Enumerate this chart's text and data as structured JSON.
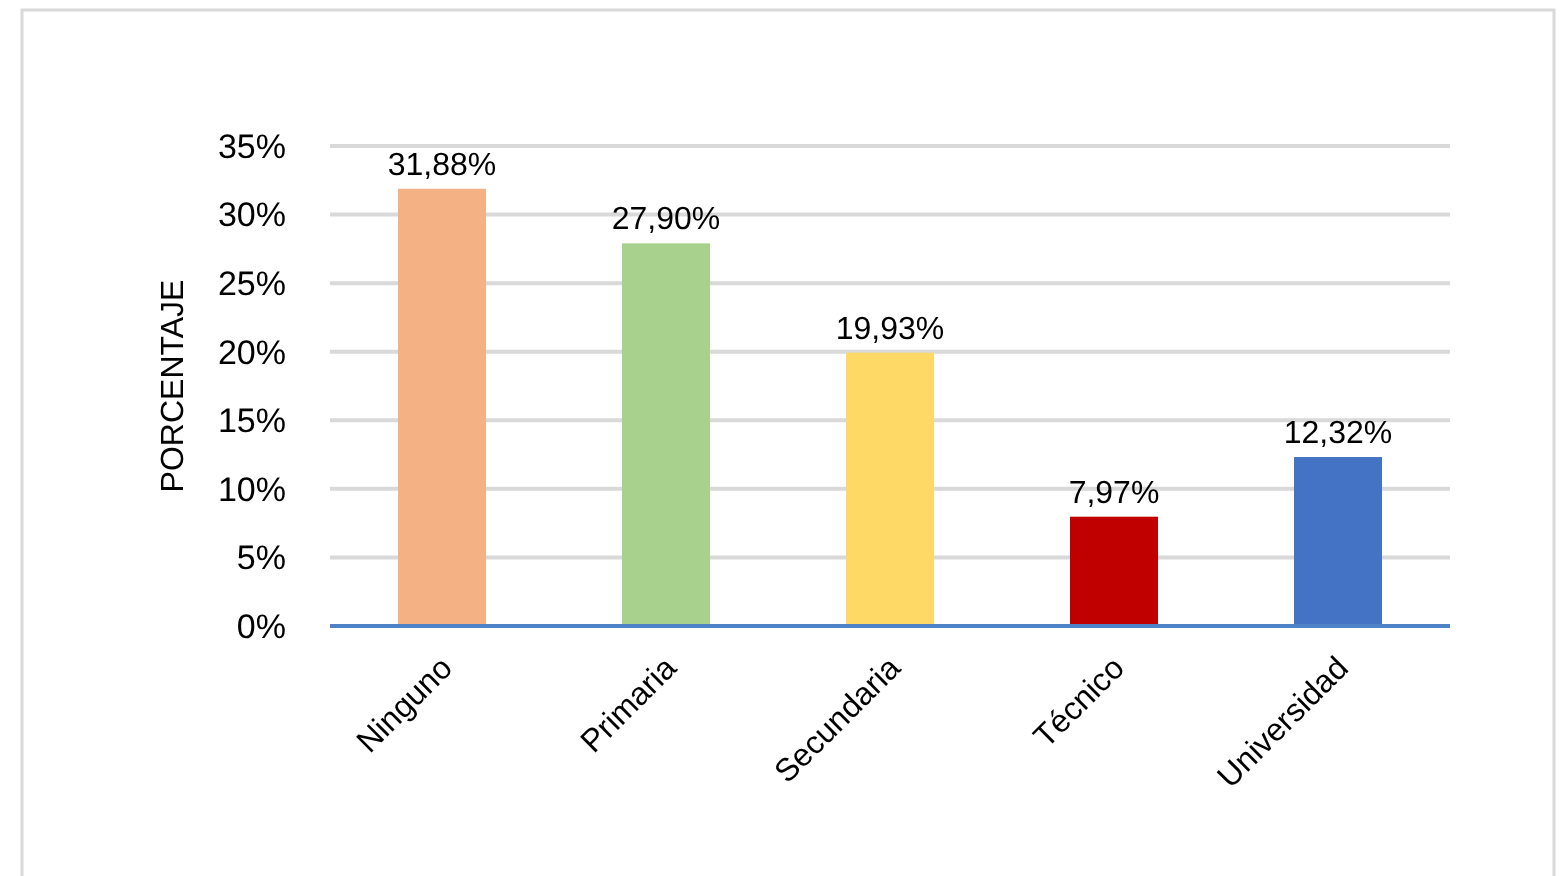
{
  "chart_data": {
    "type": "bar",
    "ylabel": "PORCENTAJE",
    "categories": [
      "Ninguno",
      "Primaria",
      "Secundaria",
      "Técnico",
      "Universidad"
    ],
    "values": [
      31.88,
      27.9,
      19.93,
      7.97,
      12.32
    ],
    "colors": [
      "#f4b183",
      "#a9d18e",
      "#ffd966",
      "#c00000",
      "#4472c4"
    ],
    "value_labels": [
      "31,88%",
      "27,90%",
      "19,93%",
      "7,97%",
      "12,32%"
    ],
    "ylim": [
      0,
      35
    ],
    "yticks": [
      {
        "value": 0,
        "label": "0%"
      },
      {
        "value": 5,
        "label": "5%"
      },
      {
        "value": 10,
        "label": "10%"
      },
      {
        "value": 15,
        "label": "15%"
      },
      {
        "value": 20,
        "label": "20%"
      },
      {
        "value": 25,
        "label": "25%"
      },
      {
        "value": 30,
        "label": "30%"
      },
      {
        "value": 35,
        "label": "35%"
      }
    ],
    "grid": "y"
  }
}
